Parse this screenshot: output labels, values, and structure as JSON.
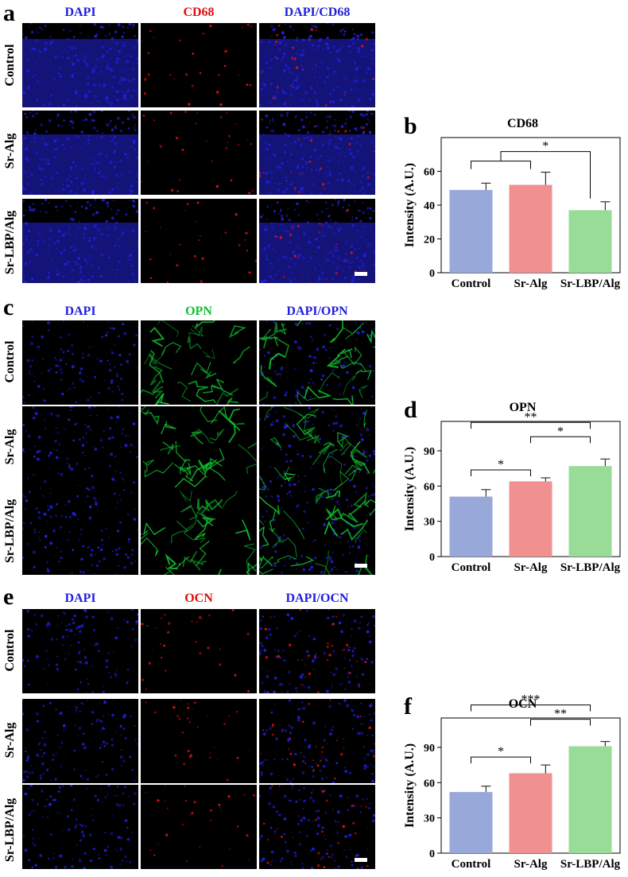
{
  "colors": {
    "dapi": "#2020e0",
    "red": "#e01010",
    "green": "#10c030",
    "control": "#97a8d9",
    "sralg": "#f09090",
    "srlbp": "#98dc98"
  },
  "panels": [
    {
      "letter": "a",
      "heads": [
        "DAPI",
        "CD68",
        "DAPI/CD68"
      ],
      "marker": "red",
      "rows": [
        "Control",
        "Sr-Alg",
        "Sr-LBP/Alg"
      ]
    },
    {
      "letter": "c",
      "heads": [
        "DAPI",
        "OPN",
        "DAPI/OPN"
      ],
      "marker": "green",
      "rows": [
        "Control",
        "Sr-Alg",
        "Sr-LBP/Alg"
      ]
    },
    {
      "letter": "e",
      "heads": [
        "DAPI",
        "OCN",
        "DAPI/OCN"
      ],
      "marker": "red",
      "rows": [
        "Control",
        "Sr-Alg",
        "Sr-LBP/Alg"
      ]
    }
  ],
  "chart_data": [
    {
      "letter": "b",
      "type": "bar",
      "title": "CD68",
      "ylabel": "Intensity (A.U.)",
      "categories": [
        "Control",
        "Sr-Alg",
        "Sr-LBP/Alg"
      ],
      "values": [
        49,
        52,
        37
      ],
      "errors": [
        4,
        7.5,
        5
      ],
      "ylim": [
        0,
        80
      ],
      "yticks": [
        0,
        20,
        40,
        60
      ],
      "significance": [
        {
          "label": "*",
          "from": "Control+Sr-Alg",
          "to": "Sr-LBP/Alg"
        }
      ]
    },
    {
      "letter": "d",
      "type": "bar",
      "title": "OPN",
      "ylabel": "Intensity (A.U.)",
      "categories": [
        "Control",
        "Sr-Alg",
        "Sr-LBP/Alg"
      ],
      "values": [
        51,
        64,
        77
      ],
      "errors": [
        6,
        3,
        6
      ],
      "ylim": [
        0,
        115
      ],
      "yticks": [
        0,
        30,
        60,
        90
      ],
      "significance": [
        {
          "label": "*",
          "from": "Control",
          "to": "Sr-Alg"
        },
        {
          "label": "*",
          "from": "Sr-Alg",
          "to": "Sr-LBP/Alg"
        },
        {
          "label": "**",
          "from": "Control",
          "to": "Sr-LBP/Alg"
        }
      ]
    },
    {
      "letter": "f",
      "type": "bar",
      "title": "OCN",
      "ylabel": "Intensity (A.U.)",
      "categories": [
        "Control",
        "Sr-Alg",
        "Sr-LBP/Alg"
      ],
      "values": [
        52,
        68,
        91
      ],
      "errors": [
        5,
        7,
        4
      ],
      "ylim": [
        0,
        115
      ],
      "yticks": [
        0,
        30,
        60,
        90
      ],
      "significance": [
        {
          "label": "*",
          "from": "Control",
          "to": "Sr-Alg"
        },
        {
          "label": "**",
          "from": "Sr-Alg",
          "to": "Sr-LBP/Alg"
        },
        {
          "label": "***",
          "from": "Control",
          "to": "Sr-LBP/Alg"
        }
      ]
    }
  ]
}
